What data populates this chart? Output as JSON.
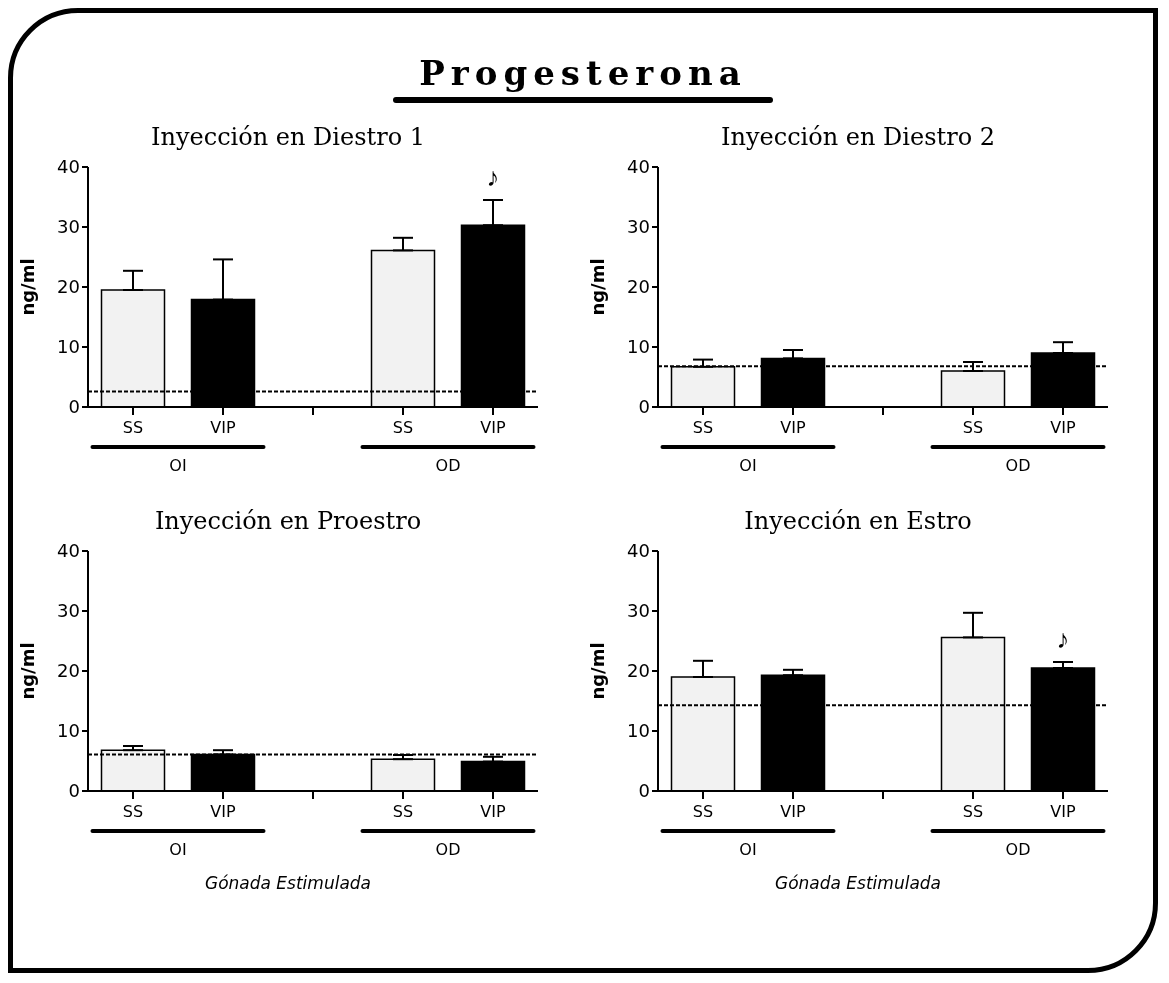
{
  "chart_data": [
    {
      "type": "bar",
      "title": "Progesterona",
      "subtitle": "Inyección en Diestro 1",
      "ylabel": "ng/ml",
      "categories": [
        "SS",
        "VIP",
        null,
        "SS",
        "VIP"
      ],
      "values": [
        19.5,
        17.9,
        null,
        26.1,
        30.3
      ],
      "errors": [
        [
          19.5,
          22.7
        ],
        [
          17.9,
          24.6
        ],
        null,
        [
          26.1,
          28.2
        ],
        [
          30.3,
          34.5
        ]
      ],
      "colors": [
        "#f2f2f2",
        "#000000",
        "#ffffff",
        "#f2f2f2",
        "#000000"
      ],
      "ylim": [
        0,
        40
      ],
      "yticks": [
        0,
        10,
        20,
        30,
        40
      ],
      "ref_lines": [
        {
          "axis": "y",
          "value": 2.6,
          "line_style": "dashed",
          "color": "#000000"
        }
      ],
      "annotations": [
        "OI",
        "OD",
        "♪"
      ]
    },
    {
      "type": "bar",
      "title": "Inyección en Diestro 2",
      "ylabel": "ng/ml",
      "categories": [
        "SS",
        "VIP",
        null,
        "SS",
        "VIP"
      ],
      "values": [
        6.7,
        8.1,
        null,
        6.0,
        9.0
      ],
      "errors": [
        [
          6.7,
          7.9
        ],
        [
          8.1,
          9.5
        ],
        null,
        [
          6.0,
          7.5
        ],
        [
          9.0,
          10.8
        ]
      ],
      "colors": [
        "#f2f2f2",
        "#000000",
        "#ffffff",
        "#f2f2f2",
        "#000000"
      ],
      "ylim": [
        0,
        40
      ],
      "yticks": [
        0,
        10,
        20,
        30,
        40
      ],
      "ref_lines": [
        {
          "axis": "y",
          "value": 6.8,
          "line_style": "dashed",
          "color": "#000000"
        }
      ],
      "annotations": [
        "OI",
        "OD"
      ]
    },
    {
      "type": "bar",
      "title": "Inyección en Proestro",
      "ylabel": "ng/ml",
      "xlabel": "Gónada Estimulada",
      "categories": [
        "SS",
        "VIP",
        null,
        "SS",
        "VIP"
      ],
      "values": [
        6.8,
        6.1,
        null,
        5.3,
        4.9
      ],
      "errors": [
        [
          6.8,
          7.5
        ],
        [
          6.1,
          6.8
        ],
        null,
        [
          5.3,
          6.0
        ],
        [
          4.9,
          5.7
        ]
      ],
      "colors": [
        "#f2f2f2",
        "#000000",
        "#ffffff",
        "#f2f2f2",
        "#000000"
      ],
      "ylim": [
        0,
        40
      ],
      "yticks": [
        0,
        10,
        20,
        30,
        40
      ],
      "ref_lines": [
        {
          "axis": "y",
          "value": 6.1,
          "line_style": "dashed",
          "color": "#000000"
        }
      ],
      "annotations": [
        "OI",
        "OD"
      ]
    },
    {
      "type": "bar",
      "title": "Inyección en Estro",
      "ylabel": "ng/ml",
      "xlabel": "Gónada Estimulada",
      "categories": [
        "SS",
        "VIP",
        null,
        "SS",
        "VIP"
      ],
      "values": [
        19.0,
        19.3,
        null,
        25.6,
        20.5
      ],
      "errors": [
        [
          19.0,
          21.7
        ],
        [
          19.3,
          20.2
        ],
        null,
        [
          25.6,
          29.7
        ],
        [
          20.5,
          21.5
        ]
      ],
      "colors": [
        "#f2f2f2",
        "#000000",
        "#ffffff",
        "#f2f2f2",
        "#000000"
      ],
      "ylim": [
        0,
        40
      ],
      "yticks": [
        0,
        10,
        20,
        30,
        40
      ],
      "ref_lines": [
        {
          "axis": "y",
          "value": 14.3,
          "line_style": "dashed",
          "color": "#000000"
        }
      ],
      "annotations": [
        "OI",
        "OD",
        "♪"
      ]
    }
  ]
}
